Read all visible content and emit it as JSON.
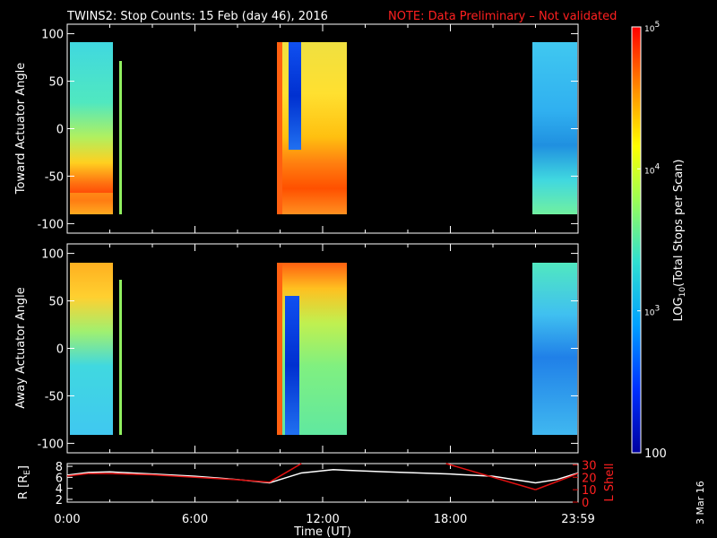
{
  "title": {
    "main": "TWINS2: Stop Counts: 15 Feb (day  46), 2016",
    "note": "NOTE: Data Preliminary – Not validated"
  },
  "stamp": "3 Mar 16",
  "colors": {
    "background": "#000000",
    "axes": "#ffffff",
    "note": "#ff2020",
    "lshell": "#e01010",
    "radius": "#ffffff"
  },
  "chart_data": [
    {
      "type": "heatmap",
      "ylabel": "Toward Actuator Angle",
      "xlim": [
        0,
        24
      ],
      "ylim": [
        -110,
        110
      ],
      "yticks": [
        -100,
        -50,
        0,
        50,
        100
      ],
      "colorscale": "rainbow",
      "data_blocks_hours": [
        [
          0.0,
          2.1
        ],
        [
          2.5,
          2.6
        ],
        [
          9.7,
          13.0
        ],
        [
          21.6,
          24.0
        ]
      ]
    },
    {
      "type": "heatmap",
      "ylabel": "Away Actuator Angle",
      "xlim": [
        0,
        24
      ],
      "ylim": [
        -110,
        110
      ],
      "yticks": [
        -100,
        -50,
        0,
        50,
        100
      ],
      "colorscale": "rainbow",
      "data_blocks_hours": [
        [
          0.0,
          2.1
        ],
        [
          2.5,
          2.6
        ],
        [
          9.7,
          13.0
        ],
        [
          21.6,
          24.0
        ]
      ]
    },
    {
      "type": "line",
      "xlabel": "Time (UT)",
      "xticks": [
        "0:00",
        "6:00",
        "12:00",
        "18:00",
        "23:59"
      ],
      "xtick_hours": [
        0,
        6,
        12,
        18,
        24
      ],
      "xlim": [
        0,
        24
      ],
      "ylabel_left": "R [RE]",
      "ylabel_left_main": "R [R",
      "ylabel_left_sub": "E",
      "ylabel_left_end": "]",
      "yticks_left": [
        2,
        4,
        6,
        8
      ],
      "ylim_left": [
        1.5,
        8.5
      ],
      "ylabel_right": "L Shell",
      "yticks_right": [
        0,
        10,
        20,
        30
      ],
      "ylim_right": [
        0,
        31
      ],
      "series": [
        {
          "name": "R",
          "axis": "left",
          "x": [
            0,
            1,
            2,
            4,
            6,
            8,
            9.5,
            10,
            11,
            12.5,
            13,
            15,
            18,
            20,
            22,
            23,
            24
          ],
          "y": [
            6.4,
            6.9,
            7.0,
            6.6,
            6.2,
            5.6,
            5.0,
            5.6,
            6.8,
            7.4,
            7.3,
            7.0,
            6.6,
            6.2,
            5.0,
            5.6,
            6.8
          ]
        },
        {
          "name": "L Shell",
          "axis": "right",
          "x": [
            0,
            1,
            2,
            4,
            6,
            8,
            9.5,
            10.5,
            11.1,
            17.6,
            22,
            24
          ],
          "y": [
            21,
            23,
            23,
            22,
            20,
            18,
            16,
            26,
            32,
            32,
            10,
            23
          ]
        }
      ]
    },
    {
      "type": "colorbar",
      "label": "LOG",
      "label_sub": "10",
      "label_tail": "(Total Stops per Scan)",
      "ticks": [
        {
          "base": "10",
          "exp": "5",
          "value": 100000
        },
        {
          "base": "10",
          "exp": "4",
          "value": 10000
        },
        {
          "base": "10",
          "exp": "3",
          "value": 1000
        },
        {
          "base": "100",
          "exp": "",
          "value": 100
        }
      ],
      "range": [
        100,
        100000
      ]
    }
  ]
}
